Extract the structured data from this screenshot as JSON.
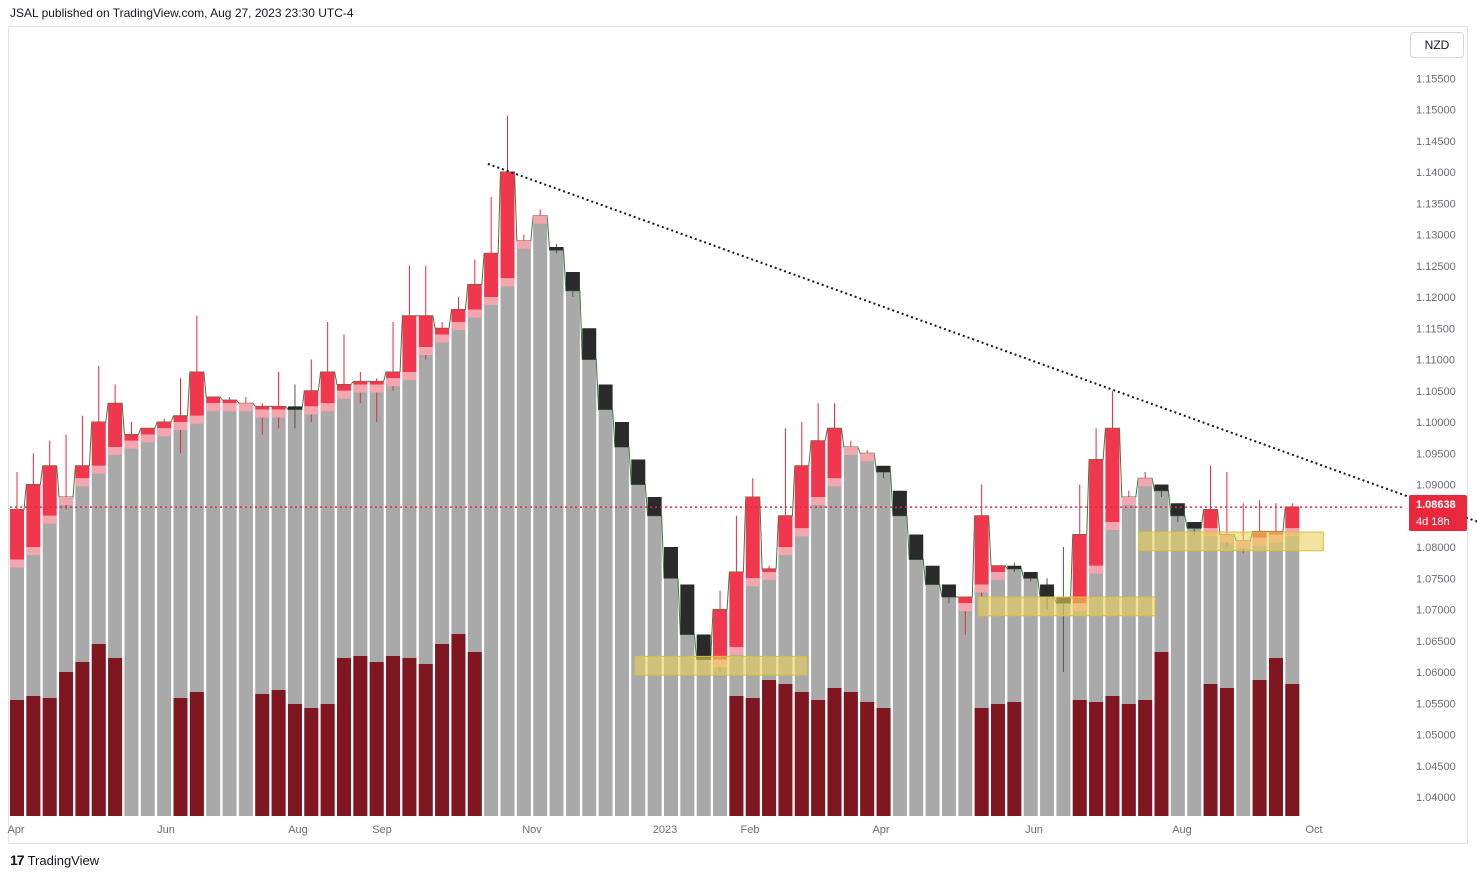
{
  "header": {
    "publisher_line": "JSAL published on TradingView.com, Aug 27, 2023 23:30 UTC-4"
  },
  "currency_badge": "NZD",
  "footer": {
    "brand": "TradingView",
    "logo_icon": "tradingview-logo-icon"
  },
  "price_label": {
    "value": "1.08638",
    "countdown": "4d 18h"
  },
  "colors": {
    "up_wick": "#e8283d",
    "up_body": "#f0374d",
    "down_body": "#2a2a2a",
    "gray_bar": "#a9a9a9",
    "volume": "#7f1620",
    "zone_fill": "#ead25a",
    "current_price": "#e8283d",
    "outline": "#3f7a3f"
  },
  "chart_data": {
    "type": "candlestick",
    "title": "",
    "ylabel": "",
    "xlabel": "",
    "ylim": [
      1.0375,
      1.1575
    ],
    "y_ticks": [
      "1.04000",
      "1.04500",
      "1.05000",
      "1.05500",
      "1.06000",
      "1.06500",
      "1.07000",
      "1.07500",
      "1.08000",
      "1.08500",
      "1.09000",
      "1.09500",
      "1.10000",
      "1.10500",
      "1.11000",
      "1.11500",
      "1.12000",
      "1.12500",
      "1.13000",
      "1.13500",
      "1.14000",
      "1.14500",
      "1.15000",
      "1.15500"
    ],
    "x_ticks": [
      "Apr",
      "Jun",
      "Aug",
      "Sep",
      "Nov",
      "2023",
      "Feb",
      "Apr",
      "Jun",
      "Aug",
      "Oct"
    ],
    "current_price": 1.08638,
    "candles": [
      {
        "o": 1.078,
        "h": 1.092,
        "l": 1.077,
        "c": 1.086
      },
      {
        "o": 1.08,
        "h": 1.095,
        "l": 1.079,
        "c": 1.09
      },
      {
        "o": 1.085,
        "h": 1.097,
        "l": 1.084,
        "c": 1.093
      },
      {
        "o": 1.088,
        "h": 1.098,
        "l": 1.086,
        "c": 1.088
      },
      {
        "o": 1.091,
        "h": 1.101,
        "l": 1.09,
        "c": 1.093
      },
      {
        "o": 1.093,
        "h": 1.109,
        "l": 1.092,
        "c": 1.1
      },
      {
        "o": 1.096,
        "h": 1.106,
        "l": 1.095,
        "c": 1.103
      },
      {
        "o": 1.097,
        "h": 1.1,
        "l": 1.096,
        "c": 1.098
      },
      {
        "o": 1.098,
        "h": 1.099,
        "l": 1.097,
        "c": 1.099
      },
      {
        "o": 1.099,
        "h": 1.1005,
        "l": 1.098,
        "c": 1.1
      },
      {
        "o": 1.1,
        "h": 1.107,
        "l": 1.095,
        "c": 1.101
      },
      {
        "o": 1.101,
        "h": 1.117,
        "l": 1.1,
        "c": 1.108
      },
      {
        "o": 1.103,
        "h": 1.104,
        "l": 1.102,
        "c": 1.104
      },
      {
        "o": 1.103,
        "h": 1.104,
        "l": 1.102,
        "c": 1.1035
      },
      {
        "o": 1.103,
        "h": 1.104,
        "l": 1.102,
        "c": 1.103
      },
      {
        "o": 1.102,
        "h": 1.103,
        "l": 1.098,
        "c": 1.1025
      },
      {
        "o": 1.102,
        "h": 1.108,
        "l": 1.099,
        "c": 1.1025
      },
      {
        "o": 1.1025,
        "h": 1.106,
        "l": 1.099,
        "c": 1.102
      },
      {
        "o": 1.1025,
        "h": 1.11,
        "l": 1.1,
        "c": 1.105
      },
      {
        "o": 1.103,
        "h": 1.116,
        "l": 1.102,
        "c": 1.108
      },
      {
        "o": 1.105,
        "h": 1.114,
        "l": 1.104,
        "c": 1.106
      },
      {
        "o": 1.106,
        "h": 1.108,
        "l": 1.103,
        "c": 1.1065
      },
      {
        "o": 1.106,
        "h": 1.107,
        "l": 1.1,
        "c": 1.1065
      },
      {
        "o": 1.107,
        "h": 1.116,
        "l": 1.105,
        "c": 1.108
      },
      {
        "o": 1.108,
        "h": 1.125,
        "l": 1.107,
        "c": 1.117
      },
      {
        "o": 1.112,
        "h": 1.125,
        "l": 1.11,
        "c": 1.117
      },
      {
        "o": 1.114,
        "h": 1.116,
        "l": 1.113,
        "c": 1.115
      },
      {
        "o": 1.116,
        "h": 1.12,
        "l": 1.115,
        "c": 1.118
      },
      {
        "o": 1.118,
        "h": 1.126,
        "l": 1.117,
        "c": 1.122
      },
      {
        "o": 1.12,
        "h": 1.136,
        "l": 1.119,
        "c": 1.127
      },
      {
        "o": 1.123,
        "h": 1.149,
        "l": 1.122,
        "c": 1.14
      },
      {
        "o": 1.129,
        "h": 1.13,
        "l": 1.128,
        "c": 1.129
      },
      {
        "o": 1.133,
        "h": 1.134,
        "l": 1.132,
        "c": 1.133
      },
      {
        "o": 1.128,
        "h": 1.1285,
        "l": 1.127,
        "c": 1.1275
      },
      {
        "o": 1.124,
        "h": 1.124,
        "l": 1.12,
        "c": 1.121
      },
      {
        "o": 1.115,
        "h": 1.115,
        "l": 1.11,
        "c": 1.11
      },
      {
        "o": 1.106,
        "h": 1.106,
        "l": 1.102,
        "c": 1.102
      },
      {
        "o": 1.1,
        "h": 1.1,
        "l": 1.096,
        "c": 1.096
      },
      {
        "o": 1.094,
        "h": 1.094,
        "l": 1.09,
        "c": 1.09
      },
      {
        "o": 1.088,
        "h": 1.088,
        "l": 1.085,
        "c": 1.085
      },
      {
        "o": 1.08,
        "h": 1.08,
        "l": 1.075,
        "c": 1.075
      },
      {
        "o": 1.074,
        "h": 1.074,
        "l": 1.066,
        "c": 1.066
      },
      {
        "o": 1.066,
        "h": 1.066,
        "l": 1.062,
        "c": 1.062
      },
      {
        "o": 1.062,
        "h": 1.073,
        "l": 1.06,
        "c": 1.07
      },
      {
        "o": 1.064,
        "h": 1.085,
        "l": 1.063,
        "c": 1.076
      },
      {
        "o": 1.075,
        "h": 1.091,
        "l": 1.074,
        "c": 1.088
      },
      {
        "o": 1.076,
        "h": 1.077,
        "l": 1.075,
        "c": 1.0765
      },
      {
        "o": 1.08,
        "h": 1.099,
        "l": 1.079,
        "c": 1.085
      },
      {
        "o": 1.083,
        "h": 1.1,
        "l": 1.082,
        "c": 1.093
      },
      {
        "o": 1.088,
        "h": 1.103,
        "l": 1.087,
        "c": 1.097
      },
      {
        "o": 1.091,
        "h": 1.103,
        "l": 1.09,
        "c": 1.099
      },
      {
        "o": 1.096,
        "h": 1.097,
        "l": 1.095,
        "c": 1.096
      },
      {
        "o": 1.095,
        "h": 1.0955,
        "l": 1.094,
        "c": 1.095
      },
      {
        "o": 1.093,
        "h": 1.093,
        "l": 1.091,
        "c": 1.092
      },
      {
        "o": 1.089,
        "h": 1.089,
        "l": 1.085,
        "c": 1.085
      },
      {
        "o": 1.082,
        "h": 1.082,
        "l": 1.078,
        "c": 1.078
      },
      {
        "o": 1.077,
        "h": 1.077,
        "l": 1.074,
        "c": 1.074
      },
      {
        "o": 1.074,
        "h": 1.074,
        "l": 1.071,
        "c": 1.072
      },
      {
        "o": 1.071,
        "h": 1.072,
        "l": 1.066,
        "c": 1.072
      },
      {
        "o": 1.074,
        "h": 1.09,
        "l": 1.072,
        "c": 1.085
      },
      {
        "o": 1.076,
        "h": 1.077,
        "l": 1.075,
        "c": 1.077
      },
      {
        "o": 1.077,
        "h": 1.0775,
        "l": 1.076,
        "c": 1.0765
      },
      {
        "o": 1.076,
        "h": 1.076,
        "l": 1.0745,
        "c": 1.075
      },
      {
        "o": 1.074,
        "h": 1.075,
        "l": 1.07,
        "c": 1.072
      },
      {
        "o": 1.072,
        "h": 1.08,
        "l": 1.06,
        "c": 1.071
      },
      {
        "o": 1.071,
        "h": 1.09,
        "l": 1.07,
        "c": 1.082
      },
      {
        "o": 1.077,
        "h": 1.099,
        "l": 1.076,
        "c": 1.094
      },
      {
        "o": 1.084,
        "h": 1.105,
        "l": 1.083,
        "c": 1.099
      },
      {
        "o": 1.088,
        "h": 1.089,
        "l": 1.087,
        "c": 1.088
      },
      {
        "o": 1.091,
        "h": 1.092,
        "l": 1.09,
        "c": 1.091
      },
      {
        "o": 1.09,
        "h": 1.09,
        "l": 1.088,
        "c": 1.089
      },
      {
        "o": 1.087,
        "h": 1.087,
        "l": 1.084,
        "c": 1.085
      },
      {
        "o": 1.084,
        "h": 1.084,
        "l": 1.082,
        "c": 1.083
      },
      {
        "o": 1.083,
        "h": 1.093,
        "l": 1.082,
        "c": 1.086
      },
      {
        "o": 1.082,
        "h": 1.092,
        "l": 1.08,
        "c": 1.082
      },
      {
        "o": 1.081,
        "h": 1.087,
        "l": 1.079,
        "c": 1.081
      },
      {
        "o": 1.0815,
        "h": 1.0875,
        "l": 1.081,
        "c": 1.0825
      },
      {
        "o": 1.082,
        "h": 1.087,
        "l": 1.0815,
        "c": 1.0825
      },
      {
        "o": 1.083,
        "h": 1.087,
        "l": 1.082,
        "c": 1.0864
      }
    ],
    "volume": [
      0.58,
      0.6,
      0.59,
      0.72,
      0.77,
      0.86,
      0.79,
      0,
      0,
      0,
      0.59,
      0.62,
      0,
      0,
      0,
      0.61,
      0.63,
      0.56,
      0.54,
      0.56,
      0.79,
      0.8,
      0.77,
      0.8,
      0.79,
      0.76,
      0.86,
      0.91,
      0.82,
      0,
      0,
      0,
      0,
      0,
      0,
      0,
      0,
      0,
      0,
      0,
      0,
      0,
      0,
      0,
      0.6,
      0.59,
      0.68,
      0.66,
      0.62,
      0.58,
      0.64,
      0.62,
      0.57,
      0.54,
      0,
      0,
      0,
      0,
      0,
      0.54,
      0.56,
      0.57,
      0,
      0,
      0,
      0.58,
      0.57,
      0.6,
      0.56,
      0.58,
      0.82,
      0,
      0,
      0.66,
      0.64,
      0,
      0.68,
      0.79,
      0.66,
      0.07
    ],
    "trendline": {
      "from": {
        "i": 28.8,
        "p": 1.1413
      },
      "to": {
        "i": 91.5,
        "p": 1.082
      }
    },
    "zones": [
      {
        "from_i": 37.8,
        "to_i": 48.3,
        "low": 1.0595,
        "high": 1.0625
      },
      {
        "from_i": 58.8,
        "to_i": 69.6,
        "low": 1.069,
        "high": 1.072
      },
      {
        "from_i": 68.6,
        "to_i": 79.9,
        "low": 1.0794,
        "high": 1.0824
      }
    ]
  }
}
